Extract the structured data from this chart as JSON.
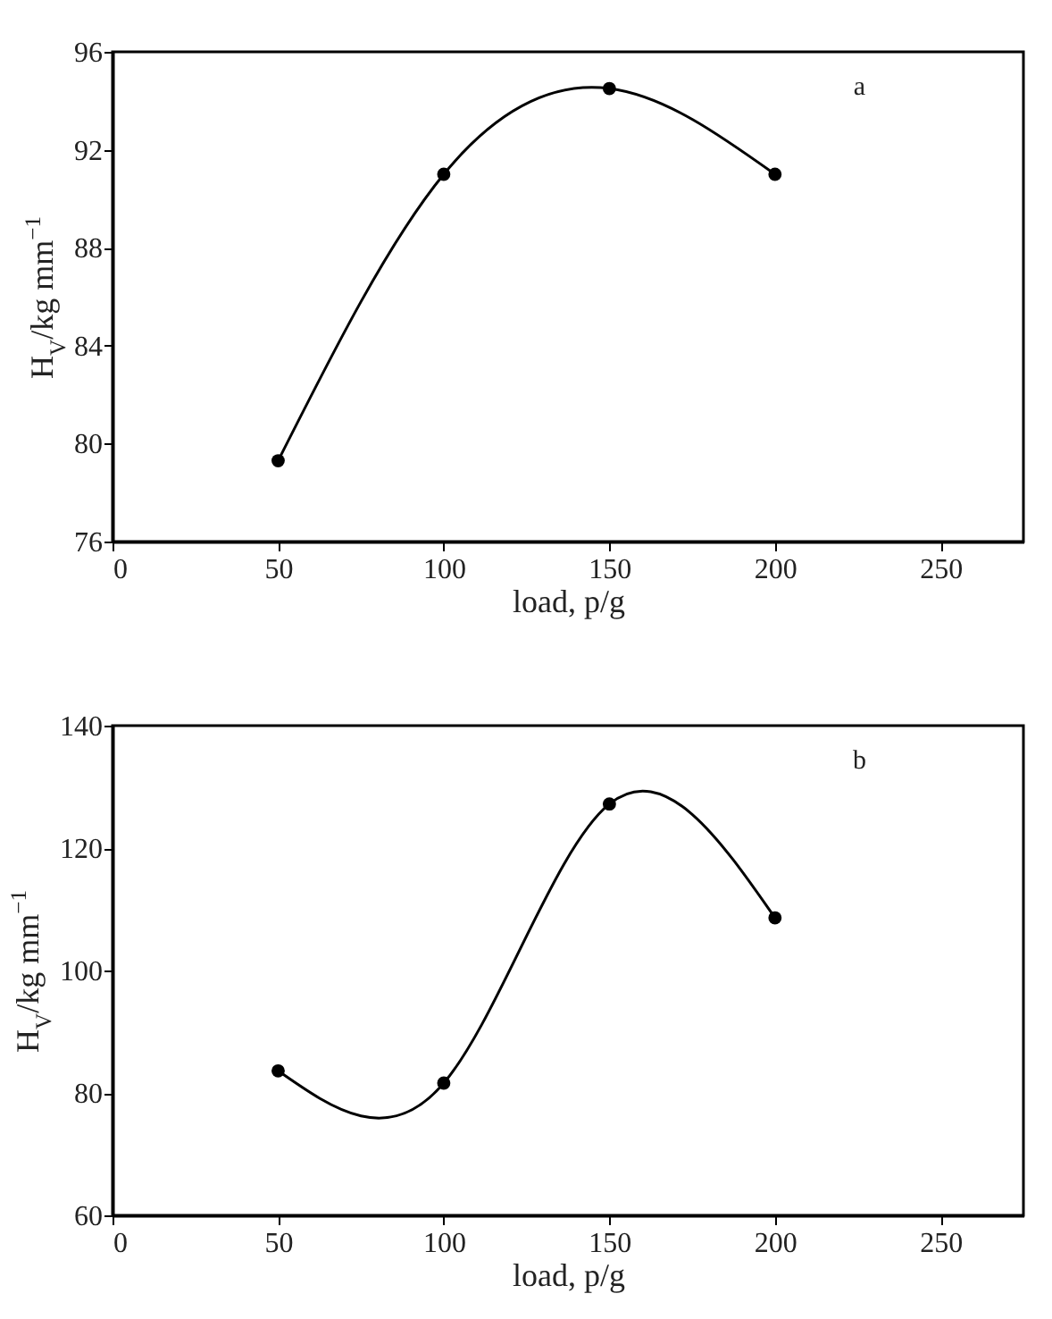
{
  "chart_data": [
    {
      "type": "line",
      "xlabel": "load, p/g",
      "ylabel": "H$_{V}$/kg mm$^{−1}$",
      "annotations": [
        "a"
      ],
      "x": [
        50,
        100,
        150,
        200
      ],
      "marker": "circle",
      "grid": false,
      "legend": false,
      "series": [
        {
          "color": "#000000",
          "values": [
            79.3,
            91.0,
            94.5,
            91.0
          ]
        }
      ],
      "xlim": [
        0,
        275
      ],
      "xticks": [
        0,
        50,
        100,
        150,
        200,
        250
      ],
      "ylim": [
        76,
        96
      ],
      "yticks": [
        76,
        80,
        84,
        88,
        92,
        96
      ]
    },
    {
      "type": "line",
      "xlabel": "load, p/g",
      "ylabel": "H$_{V}$/kg mm$^{−1}$",
      "annotations": [
        "b"
      ],
      "x": [
        50,
        100,
        150,
        200
      ],
      "marker": "circle",
      "grid": false,
      "legend": false,
      "series": [
        {
          "color": "#000000",
          "values": [
            83.6,
            81.6,
            127.2,
            108.6
          ]
        }
      ],
      "xlim": [
        0,
        275
      ],
      "xticks": [
        0,
        50,
        100,
        150,
        200,
        250
      ],
      "ylim": [
        60,
        140
      ],
      "yticks": [
        60,
        80,
        100,
        120,
        140
      ]
    }
  ]
}
